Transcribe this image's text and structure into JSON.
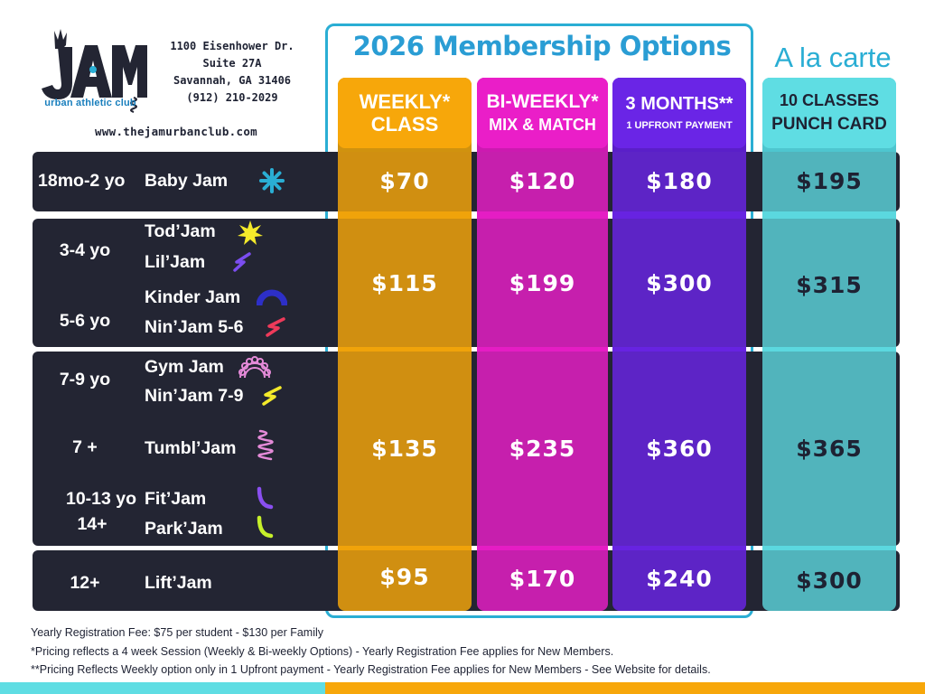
{
  "logo": {
    "wordmark": "JAM",
    "tagline": "urban athletic club"
  },
  "address": [
    "1100 Eisenhower Dr.",
    "Suite 27A",
    "Savannah, GA 31406",
    "(912) 210-2029"
  ],
  "website": "www.thejamurbanclub.com",
  "membership_title": "2026 Membership Options",
  "alacarte_title": "A la carte",
  "columns": {
    "weekly": {
      "line1": "WEEKLY*",
      "line2": "CLASS"
    },
    "biweekly": {
      "line1": "BI-WEEKLY*",
      "line2": "MIX & MATCH"
    },
    "months": {
      "line1": "3 MONTHS**",
      "line2": "1 UPFRONT PAYMENT"
    },
    "punch": {
      "line1": "10 CLASSES",
      "line2": "PUNCH CARD"
    }
  },
  "rows": [
    {
      "ages": [
        "18mo-2 yo"
      ],
      "programs": [
        "Baby Jam"
      ],
      "prices": {
        "weekly": "$70",
        "biweekly": "$120",
        "months": "$180",
        "punch": "$195"
      }
    },
    {
      "ages": [
        "3-4 yo",
        "5-6 yo"
      ],
      "programs": [
        "Tod’Jam",
        "Lil’Jam",
        "Kinder Jam",
        "Nin’Jam 5-6"
      ],
      "prices": {
        "weekly": "$115",
        "biweekly": "$199",
        "months": "$300",
        "punch": "$315"
      }
    },
    {
      "ages": [
        "7-9 yo",
        "7 +",
        "10-13 yo",
        "14+"
      ],
      "programs": [
        "Gym Jam",
        "Nin’Jam 7-9",
        "Tumbl’Jam",
        "Fit’Jam",
        "Park’Jam"
      ],
      "prices": {
        "weekly": "$135",
        "biweekly": "$235",
        "months": "$360",
        "punch": "$365"
      }
    },
    {
      "ages": [
        "12+"
      ],
      "programs": [
        "Lift’Jam"
      ],
      "prices": {
        "weekly": "$95",
        "biweekly": "$170",
        "months": "$240",
        "punch": "$300"
      }
    }
  ],
  "icons": [
    "asterisk-burst-icon",
    "sun-burst-icon",
    "lightning-icon",
    "arch-icon",
    "lightning-icon",
    "rainbow-icon",
    "lightning-icon",
    "spring-icon",
    "curve-icon",
    "curve-icon"
  ],
  "notes": [
    "Yearly Registration Fee: $75 per student - $130 per Family",
    "*Pricing reflects a 4 week Session (Weekly & Bi-weekly Options) - Yearly Registration Fee applies for New Members.",
    "**Pricing Reflects Weekly option only in 1 Upfront payment - Yearly Registration Fee applies for New Members - See Website for details."
  ],
  "colors": {
    "navy": "#232533",
    "teal": "#2aaed4",
    "gold": "#f7a70a",
    "magenta": "#ea1ec8",
    "purple": "#6a25e6",
    "aqua": "#5fdde3"
  }
}
